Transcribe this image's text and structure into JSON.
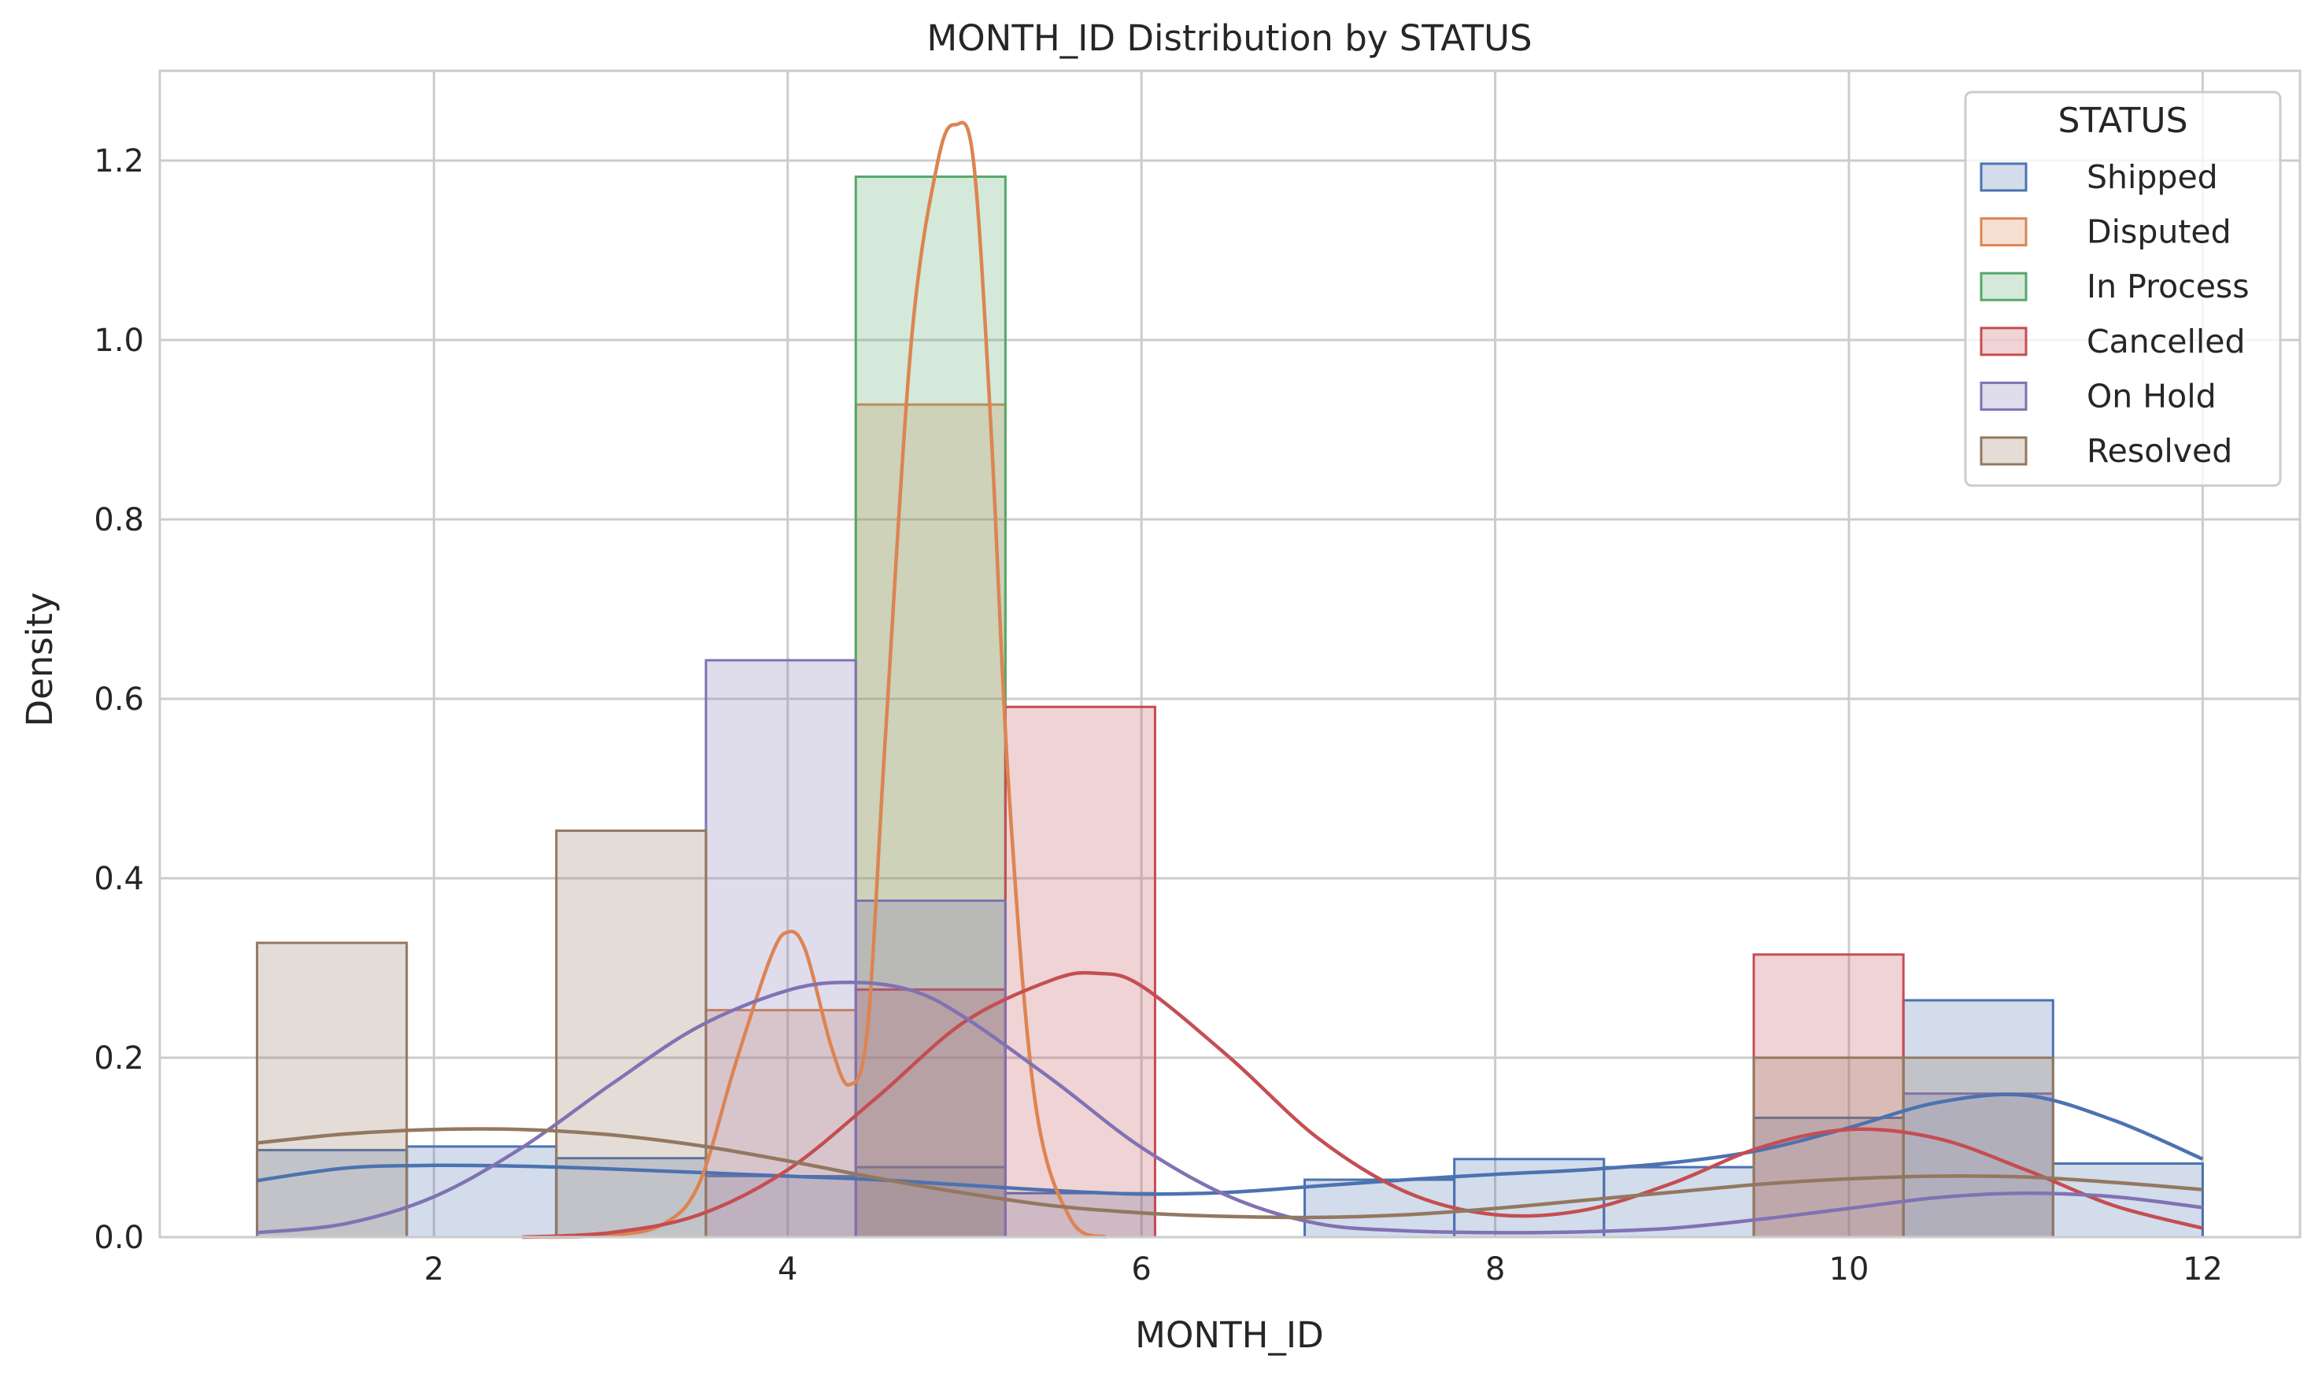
{
  "chart_data": {
    "type": "histogram",
    "title": "MONTH_ID Distribution by STATUS",
    "xlabel": "MONTH_ID",
    "ylabel": "Density",
    "xlim": [
      0.45,
      12.55
    ],
    "ylim": [
      0,
      1.3
    ],
    "xticks": [
      2,
      4,
      6,
      8,
      10,
      12
    ],
    "yticks": [
      0.0,
      0.2,
      0.4,
      0.6,
      0.8,
      1.0,
      1.2
    ],
    "grid": true,
    "legend": {
      "title": "STATUS",
      "position": "top-right"
    },
    "bin_edges": [
      1.0,
      1.846,
      2.692,
      3.538,
      4.385,
      5.231,
      6.077,
      6.923,
      7.769,
      8.615,
      9.462,
      10.308,
      11.154,
      12.0
    ],
    "series": [
      {
        "name": "Shipped",
        "color": "#4c72b0",
        "values": [
          0.097,
          0.101,
          0.088,
          0.068,
          0.078,
          0.049,
          0.0,
          0.064,
          0.087,
          0.078,
          0.133,
          0.264,
          0.082
        ],
        "kde_x": [
          1.0,
          1.5,
          2.0,
          2.5,
          3.0,
          3.5,
          4.0,
          4.5,
          5.0,
          5.5,
          6.0,
          6.5,
          7.0,
          7.5,
          8.0,
          8.5,
          9.0,
          9.5,
          10.0,
          10.5,
          11.0,
          11.5,
          12.0
        ],
        "kde_y": [
          0.063,
          0.077,
          0.08,
          0.079,
          0.076,
          0.072,
          0.068,
          0.064,
          0.058,
          0.052,
          0.048,
          0.05,
          0.057,
          0.064,
          0.07,
          0.075,
          0.083,
          0.097,
          0.122,
          0.15,
          0.158,
          0.13,
          0.087
        ]
      },
      {
        "name": "Disputed",
        "color": "#dd8452",
        "values": [
          0.0,
          0.0,
          0.0,
          0.253,
          0.928,
          0.0,
          0.0,
          0.0,
          0.0,
          0.0,
          0.0,
          0.0,
          0.0
        ],
        "kde_x": [
          2.5,
          3.0,
          3.3,
          3.5,
          3.7,
          3.9,
          4.0,
          4.1,
          4.25,
          4.35,
          4.45,
          4.55,
          4.7,
          4.85,
          4.95,
          5.05,
          5.15,
          5.25,
          5.4,
          5.6,
          5.8
        ],
        "kde_y": [
          0.0,
          0.002,
          0.015,
          0.06,
          0.19,
          0.31,
          0.34,
          0.32,
          0.21,
          0.17,
          0.23,
          0.55,
          1.0,
          1.2,
          1.24,
          1.2,
          0.9,
          0.5,
          0.15,
          0.02,
          0.0
        ]
      },
      {
        "name": "In Process",
        "color": "#55a868",
        "values": [
          0.0,
          0.0,
          0.0,
          0.0,
          1.182,
          0.0,
          0.0,
          0.0,
          0.0,
          0.0,
          0.0,
          0.0,
          0.0
        ],
        "kde_x": [],
        "kde_y": []
      },
      {
        "name": "Cancelled",
        "color": "#c44e52",
        "values": [
          0.0,
          0.0,
          0.0,
          0.0,
          0.276,
          0.591,
          0.0,
          0.0,
          0.0,
          0.0,
          0.315,
          0.0,
          0.0
        ],
        "kde_x": [
          2.5,
          3.0,
          3.5,
          4.0,
          4.5,
          5.0,
          5.5,
          5.75,
          6.0,
          6.5,
          7.0,
          7.5,
          8.0,
          8.5,
          9.0,
          9.5,
          10.0,
          10.5,
          11.0,
          11.5,
          12.0
        ],
        "kde_y": [
          0.0,
          0.005,
          0.025,
          0.075,
          0.155,
          0.24,
          0.287,
          0.294,
          0.28,
          0.2,
          0.11,
          0.05,
          0.025,
          0.03,
          0.06,
          0.1,
          0.12,
          0.11,
          0.075,
          0.035,
          0.01
        ]
      },
      {
        "name": "On Hold",
        "color": "#8172b3",
        "values": [
          0.0,
          0.0,
          0.0,
          0.643,
          0.375,
          0.0,
          0.0,
          0.0,
          0.0,
          0.0,
          0.0,
          0.16,
          0.0
        ],
        "kde_x": [
          1.0,
          1.5,
          2.0,
          2.5,
          3.0,
          3.5,
          4.0,
          4.35,
          4.7,
          5.0,
          5.5,
          6.0,
          6.5,
          7.0,
          7.5,
          8.0,
          8.5,
          9.0,
          9.5,
          10.0,
          10.5,
          11.0,
          11.5,
          12.0
        ],
        "kde_y": [
          0.005,
          0.015,
          0.045,
          0.1,
          0.17,
          0.235,
          0.275,
          0.284,
          0.275,
          0.245,
          0.175,
          0.1,
          0.045,
          0.015,
          0.007,
          0.005,
          0.006,
          0.01,
          0.02,
          0.032,
          0.044,
          0.049,
          0.045,
          0.033
        ]
      },
      {
        "name": "Resolved",
        "color": "#937860",
        "values": [
          0.328,
          0.0,
          0.453,
          0.0,
          0.0,
          0.0,
          0.0,
          0.0,
          0.0,
          0.0,
          0.2,
          0.2,
          0.0
        ],
        "kde_x": [
          1.0,
          1.5,
          2.0,
          2.5,
          3.0,
          3.5,
          4.0,
          4.5,
          5.0,
          5.5,
          6.0,
          6.5,
          7.0,
          7.5,
          8.0,
          8.5,
          9.0,
          9.5,
          10.0,
          10.5,
          11.0,
          11.5,
          12.0
        ],
        "kde_y": [
          0.105,
          0.115,
          0.12,
          0.12,
          0.114,
          0.102,
          0.085,
          0.066,
          0.049,
          0.035,
          0.027,
          0.023,
          0.022,
          0.025,
          0.032,
          0.041,
          0.05,
          0.059,
          0.065,
          0.068,
          0.067,
          0.061,
          0.053
        ]
      }
    ]
  }
}
